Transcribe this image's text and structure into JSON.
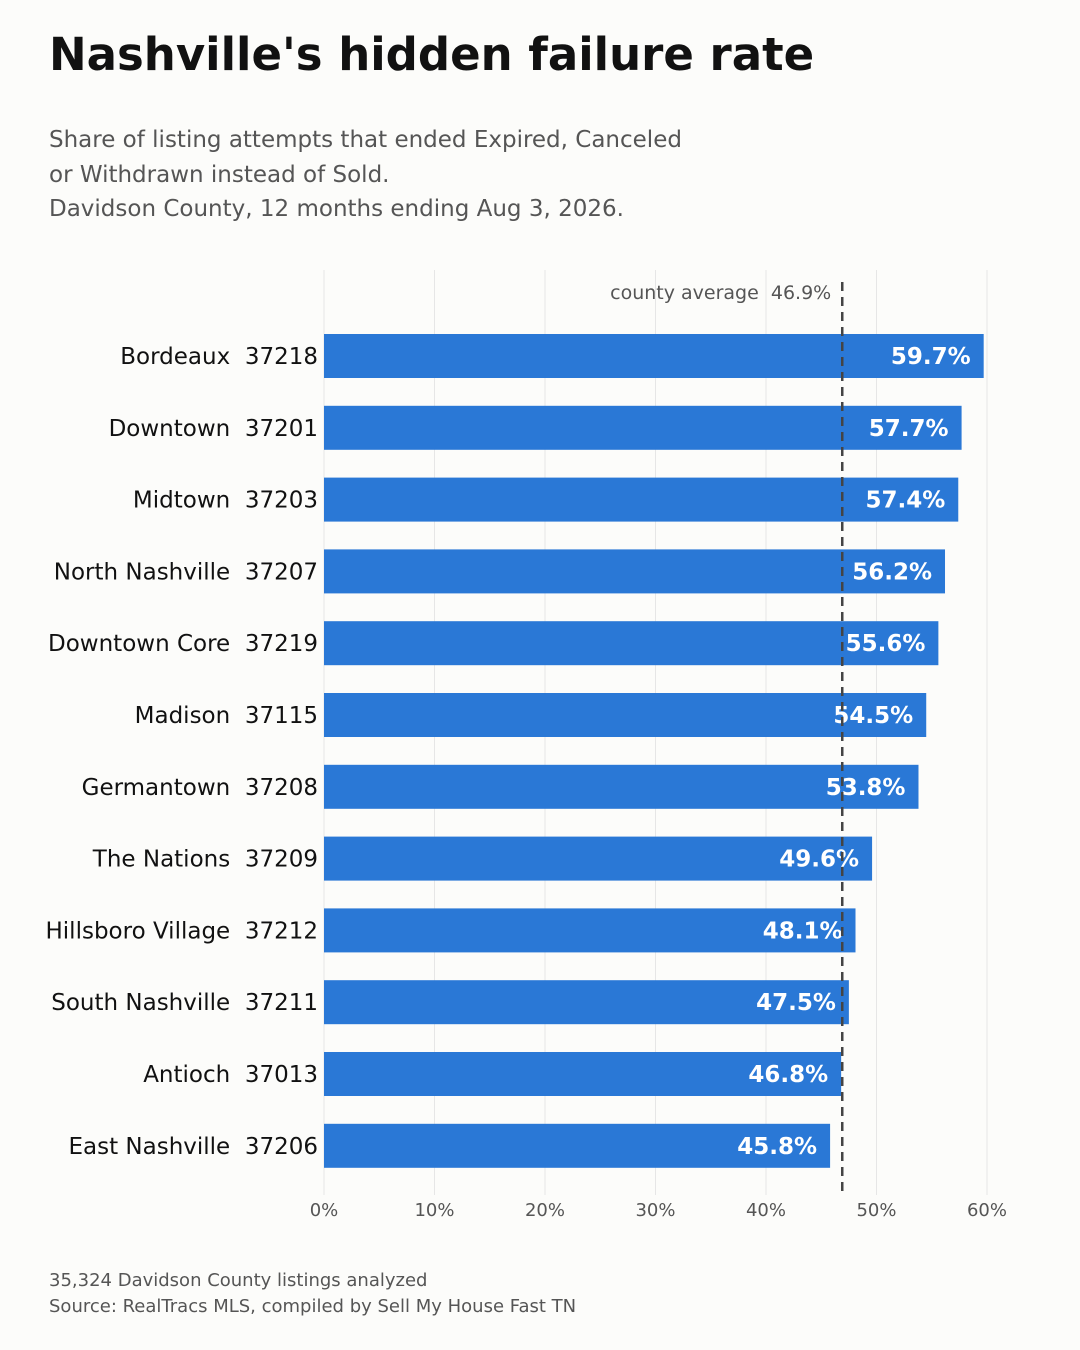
{
  "title": "Nashville's hidden failure rate",
  "subtitle": [
    "Share of listing attempts that ended Expired, Canceled",
    "or Withdrawn instead of Sold.",
    "Davidson County, 12 months ending Aug 3, 2026."
  ],
  "footer": {
    "note": "35,324 Davidson County listings analyzed",
    "source": "Source: RealTracs MLS, compiled by Sell My House Fast TN"
  },
  "chart_data": {
    "type": "bar",
    "orientation": "horizontal",
    "categories": [
      "Bordeaux  37218",
      "Downtown  37201",
      "Midtown  37203",
      "North Nashville  37207",
      "Downtown Core  37219",
      "Madison  37115",
      "Germantown  37208",
      "The Nations  37209",
      "Hillsboro Village  37212",
      "South Nashville  37211",
      "Antioch  37013",
      "East Nashville  37206"
    ],
    "values": [
      59.7,
      57.7,
      57.4,
      56.2,
      55.6,
      54.5,
      53.8,
      49.6,
      48.1,
      47.5,
      46.8,
      45.8
    ],
    "data_labels": [
      "59.7%",
      "57.7%",
      "57.4%",
      "56.2%",
      "55.6%",
      "54.5%",
      "53.8%",
      "49.6%",
      "48.1%",
      "47.5%",
      "46.8%",
      "45.8%"
    ],
    "xlim": [
      0,
      60
    ],
    "x_ticks": [
      0,
      10,
      20,
      30,
      40,
      50,
      60
    ],
    "x_tick_labels": [
      "0%",
      "10%",
      "20%",
      "30%",
      "40%",
      "50%",
      "60%"
    ],
    "reference_line": {
      "value": 46.9,
      "label": "county average  46.9%"
    },
    "grid": "vertical",
    "bar_color": "#2a78d6",
    "label_color": "#ffffff"
  }
}
